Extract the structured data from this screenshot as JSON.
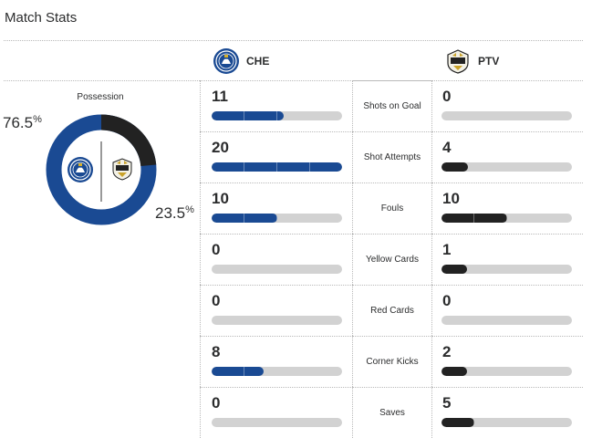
{
  "title": "Match Stats",
  "home": {
    "abbr": "CHE",
    "logo_icon": "chelsea-crest-icon",
    "color": "#1a4a93"
  },
  "away": {
    "abbr": "PTV",
    "logo_icon": "port-vale-crest-icon",
    "color": "#222222"
  },
  "possession": {
    "label": "Possession",
    "home_pct": "76.5",
    "away_pct": "23.5",
    "pct_symbol": "%"
  },
  "stats": [
    {
      "label": "Shots on Goal",
      "home": 11,
      "away": 0
    },
    {
      "label": "Shot Attempts",
      "home": 20,
      "away": 4
    },
    {
      "label": "Fouls",
      "home": 10,
      "away": 10
    },
    {
      "label": "Yellow Cards",
      "home": 0,
      "away": 1
    },
    {
      "label": "Red Cards",
      "home": 0,
      "away": 0
    },
    {
      "label": "Corner Kicks",
      "home": 8,
      "away": 2
    },
    {
      "label": "Saves",
      "home": 0,
      "away": 5
    }
  ]
}
